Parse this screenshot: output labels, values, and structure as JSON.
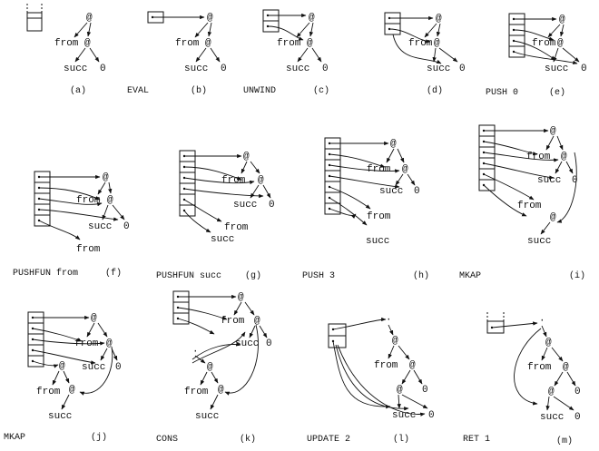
{
  "symbols": {
    "app": "@",
    "indirection": "·"
  },
  "frames": [
    {
      "id": "a",
      "caption": "(a)",
      "instruction": "EVAL"
    },
    {
      "id": "b",
      "caption": "(b)",
      "instruction": "UNWIND"
    },
    {
      "id": "c",
      "caption": "(c)",
      "instruction": ""
    },
    {
      "id": "d",
      "caption": "(d)",
      "instruction": "PUSH 0"
    },
    {
      "id": "e",
      "caption": "(e)",
      "instruction": ""
    },
    {
      "id": "f",
      "caption": "(f)",
      "instruction": "PUSHFUN from"
    },
    {
      "id": "g",
      "caption": "(g)",
      "instruction": "PUSHFUN succ"
    },
    {
      "id": "h",
      "caption": "(h)",
      "instruction": "PUSH 3"
    },
    {
      "id": "i",
      "caption": "(i)",
      "instruction": "MKAP"
    },
    {
      "id": "j",
      "caption": "(j)",
      "instruction": "MKAP"
    },
    {
      "id": "k",
      "caption": "(k)",
      "instruction": "CONS"
    },
    {
      "id": "l",
      "caption": "(l)",
      "instruction": "UPDATE 2"
    },
    {
      "id": "m",
      "caption": "(m)",
      "instruction": "RET 1"
    }
  ],
  "node_labels": {
    "from": "from",
    "succ": "succ",
    "zero": "0"
  }
}
